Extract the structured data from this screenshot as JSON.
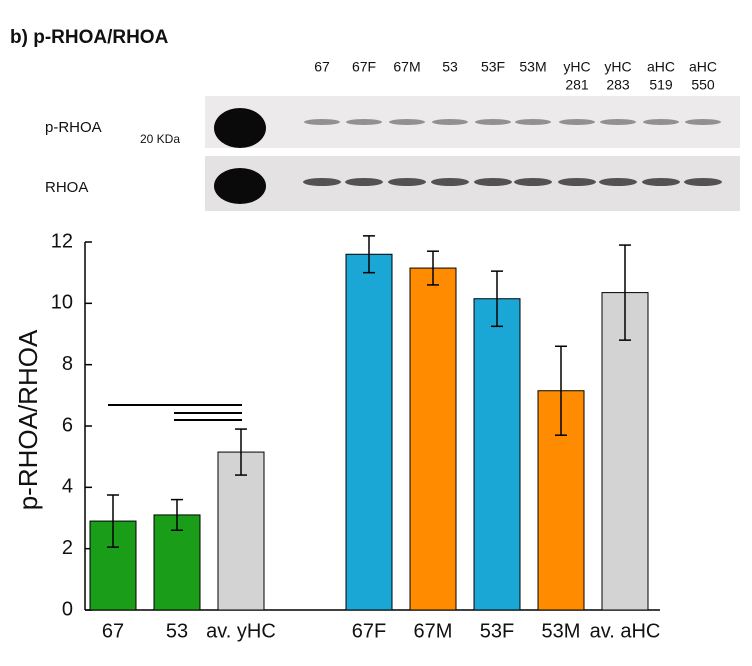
{
  "header": {
    "title": "b) p-RHOA/RHOA"
  },
  "blot": {
    "lanes": [
      [
        "67"
      ],
      [
        "67F"
      ],
      [
        "67M"
      ],
      [
        "53"
      ],
      [
        "53F"
      ],
      [
        "53M"
      ],
      [
        "yHC",
        "281"
      ],
      [
        "yHC",
        "283"
      ],
      [
        "aHC",
        "519"
      ],
      [
        "aHC",
        "550"
      ]
    ],
    "row_labels": [
      "p-RHOA",
      "RHOA"
    ],
    "marker": "20 KDa"
  },
  "chart_data": {
    "type": "bar",
    "ylabel": "p-RHOA/RHOA",
    "categories": [
      "67",
      "53",
      "av. yHC",
      null,
      "67F",
      "67M",
      "53F",
      "53M",
      "av. aHC"
    ],
    "values": [
      2.9,
      3.1,
      5.15,
      null,
      11.6,
      11.15,
      10.15,
      7.15,
      10.35
    ],
    "errors": [
      0.85,
      0.5,
      0.75,
      null,
      0.6,
      0.55,
      0.9,
      1.45,
      1.55
    ],
    "colors": [
      "#1a9e1a",
      "#1a9e1a",
      "#d3d3d3",
      null,
      "#1aa7d6",
      "#ff8c00",
      "#1aa7d6",
      "#ff8c00",
      "#d3d3d3"
    ],
    "ylim": [
      0,
      12
    ],
    "yticks": [
      0,
      2,
      4,
      6,
      8,
      10,
      12
    ]
  }
}
